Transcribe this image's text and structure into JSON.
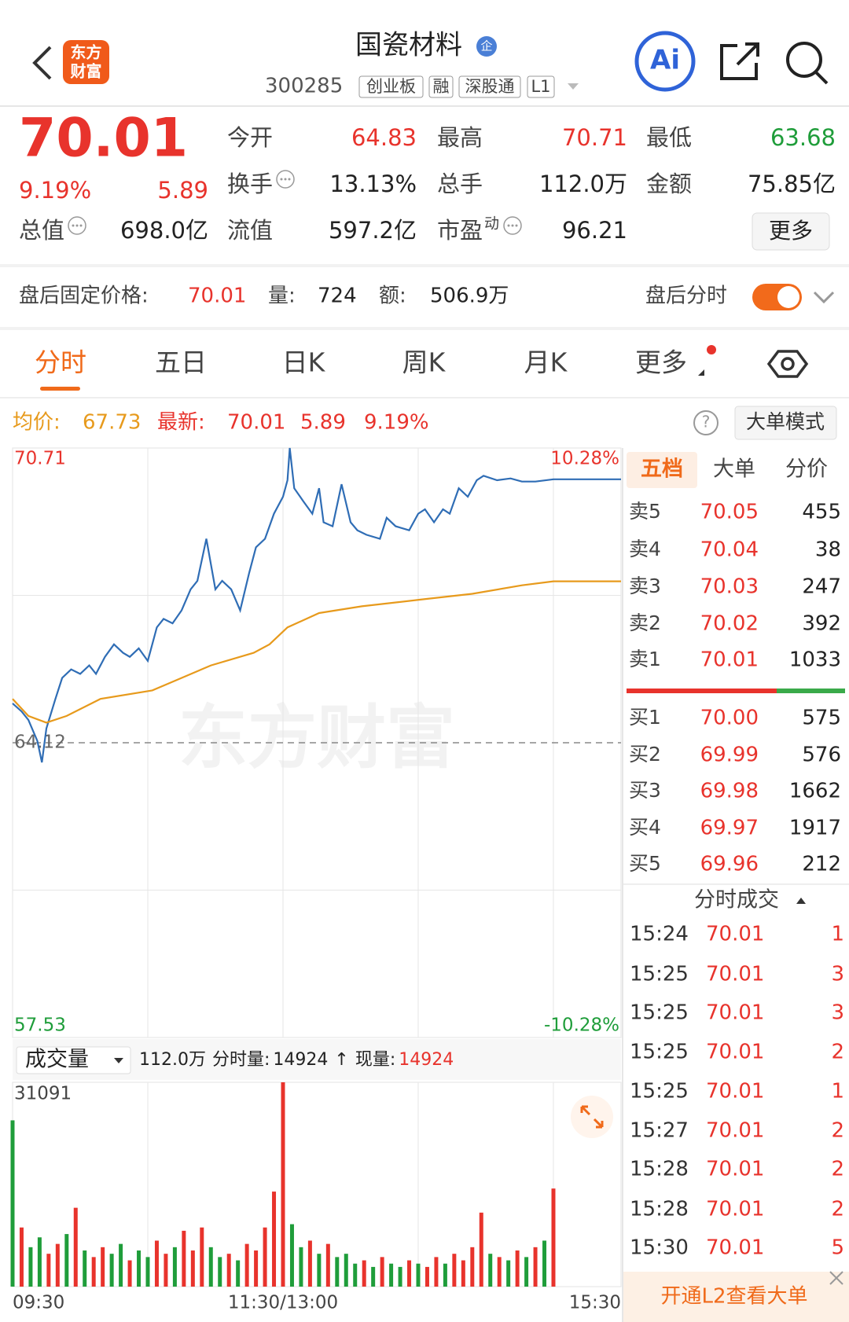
{
  "header": {
    "logo": [
      "东方",
      "财富"
    ],
    "title": "国瓷材料",
    "badge": "企",
    "code": "300285",
    "tags": [
      "创业板",
      "融",
      "深股通",
      "L1"
    ],
    "ai": "Ai"
  },
  "quote": {
    "price": "70.01",
    "change_pct": "9.19%",
    "change": "5.89",
    "rows": [
      [
        {
          "label": "今开",
          "value": "64.83",
          "color": "#e8332c"
        },
        {
          "label": "最高",
          "value": "70.71",
          "color": "#e8332c"
        },
        {
          "label": "最低",
          "value": "63.68",
          "color": "#1f9d3a"
        }
      ],
      [
        {
          "label": "换手",
          "value": "13.13%",
          "info": true
        },
        {
          "label": "总手",
          "value": "112.0万"
        },
        {
          "label": "金额",
          "value": "75.85亿"
        }
      ],
      [
        {
          "label": "总值",
          "value": "698.0亿",
          "info": true
        },
        {
          "label": "流值",
          "value": "597.2亿"
        },
        {
          "label": "市盈",
          "sup": "动",
          "value": "96.21",
          "info": true
        }
      ]
    ],
    "more": "更多"
  },
  "after_hours": {
    "label": "盘后固定价格:",
    "price": "70.01",
    "volume_label": "量:",
    "volume": "724",
    "amount_label": "额:",
    "amount": "506.9万",
    "toggle_label": "盘后分时"
  },
  "tabs": [
    "分时",
    "五日",
    "日K",
    "周K",
    "月K",
    "更多"
  ],
  "info": {
    "avg_label": "均价:",
    "avg": "67.73",
    "last_label": "最新:",
    "last": "70.01",
    "change": "5.89",
    "change_pct": "9.19%",
    "help": "?",
    "mode_button": "大单模式"
  },
  "chart_data": {
    "type": "line",
    "watermark": "东方财富",
    "xlim": [
      0,
      270
    ],
    "xticks": [
      {
        "value": 0,
        "label": "09:30"
      },
      {
        "value": 120,
        "label": "11:30/13:00"
      },
      {
        "value": 270,
        "label": "15:30"
      }
    ],
    "x_grid": [
      60,
      120,
      180,
      240
    ],
    "ylim": [
      57.53,
      70.71
    ],
    "yticks": [
      70.71,
      64.12,
      57.53
    ],
    "ytick_colors": [
      "#e8332c",
      "#666666",
      "#1f9d3a"
    ],
    "dashed_tick": 1,
    "y_grid_divisions": 4,
    "y2lim": [
      -10.28,
      10.28
    ],
    "y2ticks": [
      {
        "value": 10.28,
        "label": "10.28%"
      },
      {
        "value": -10.28,
        "label": "-10.28%"
      }
    ],
    "y2tick_colors": [
      "#e8332c",
      "#1f9d3a"
    ],
    "series": [
      {
        "color": "#2f6db5",
        "x": [
          0,
          4,
          7,
          11,
          13,
          15,
          19,
          22,
          26,
          30,
          34,
          37,
          41,
          45,
          49,
          52,
          56,
          60,
          64,
          67,
          71,
          75,
          79,
          82,
          86,
          90,
          93,
          97,
          101,
          105,
          108,
          112,
          116,
          120,
          122,
          123,
          125,
          129,
          133,
          136,
          138,
          142,
          146,
          150,
          153,
          157,
          163,
          166,
          170,
          176,
          180,
          183,
          187,
          191,
          194,
          198,
          202,
          206,
          209,
          215,
          221,
          226,
          232,
          240,
          270
        ],
        "values": [
          65.0,
          64.82,
          64.63,
          64.16,
          63.68,
          64.44,
          65.1,
          65.57,
          65.76,
          65.66,
          65.85,
          65.66,
          66.04,
          66.32,
          66.13,
          66.04,
          66.23,
          65.95,
          66.7,
          66.89,
          66.79,
          67.08,
          67.55,
          67.74,
          68.68,
          67.55,
          67.74,
          67.55,
          67.08,
          67.92,
          68.49,
          68.68,
          69.24,
          69.62,
          69.99,
          70.71,
          69.81,
          69.52,
          69.24,
          69.81,
          69.05,
          68.96,
          69.9,
          69.05,
          68.87,
          68.77,
          68.68,
          69.15,
          68.96,
          68.87,
          69.24,
          69.34,
          69.05,
          69.34,
          69.24,
          69.81,
          69.62,
          69.99,
          70.09,
          69.99,
          70.03,
          69.96,
          69.96,
          70.01,
          70.01
        ]
      },
      {
        "color": "#e79a1c",
        "x": [
          0,
          7,
          15,
          24,
          39,
          62,
          69,
          88,
          107,
          114,
          122,
          136,
          155,
          181,
          204,
          226,
          240,
          270
        ],
        "values": [
          65.1,
          64.72,
          64.57,
          64.72,
          65.1,
          65.29,
          65.44,
          65.85,
          66.13,
          66.32,
          66.7,
          67.02,
          67.17,
          67.32,
          67.45,
          67.64,
          67.73,
          67.73
        ]
      }
    ],
    "volume": {
      "type": "bar",
      "selector": "成交量",
      "summary": "112.0万",
      "interval_label": "分时量:",
      "interval": "14924",
      "arrow": "↑",
      "current_label": "现量:",
      "current": "14924",
      "ylim": [
        0,
        31091
      ],
      "yticks": [
        31091
      ],
      "x": [
        0,
        4,
        8,
        12,
        16,
        20,
        24,
        28,
        32,
        36,
        40,
        44,
        48,
        52,
        56,
        60,
        64,
        68,
        72,
        76,
        80,
        84,
        88,
        92,
        96,
        100,
        104,
        108,
        112,
        116,
        120,
        124,
        128,
        132,
        136,
        140,
        144,
        148,
        152,
        156,
        160,
        164,
        168,
        172,
        176,
        180,
        184,
        188,
        192,
        196,
        200,
        204,
        208,
        212,
        216,
        220,
        224,
        228,
        232,
        236,
        240
      ],
      "values": [
        25300,
        9000,
        6000,
        7500,
        5000,
        6500,
        8000,
        12000,
        5500,
        4500,
        6000,
        5000,
        6500,
        4000,
        5500,
        4500,
        7000,
        5000,
        6000,
        8500,
        5500,
        9000,
        6000,
        4500,
        5000,
        4000,
        6500,
        5500,
        9000,
        14460,
        31091,
        9500,
        6000,
        7000,
        5000,
        6500,
        4500,
        5000,
        3500,
        4000,
        3000,
        4500,
        3500,
        3000,
        4000,
        3500,
        3000,
        4500,
        3500,
        5000,
        4000,
        6000,
        11260,
        5000,
        4500,
        4000,
        5500,
        4500,
        6000,
        7000,
        14924
      ],
      "colors": [
        "#1f9d3a",
        "#e8332c",
        "#1f9d3a",
        "#1f9d3a",
        "#e8332c",
        "#e8332c",
        "#1f9d3a",
        "#e8332c",
        "#1f9d3a",
        "#e8332c",
        "#e8332c",
        "#1f9d3a",
        "#1f9d3a",
        "#e8332c",
        "#1f9d3a",
        "#1f9d3a",
        "#e8332c",
        "#e8332c",
        "#1f9d3a",
        "#e8332c",
        "#e8332c",
        "#e8332c",
        "#1f9d3a",
        "#1f9d3a",
        "#e8332c",
        "#1f9d3a",
        "#e8332c",
        "#e8332c",
        "#e8332c",
        "#e8332c",
        "#e8332c",
        "#1f9d3a",
        "#1f9d3a",
        "#e8332c",
        "#1f9d3a",
        "#e8332c",
        "#1f9d3a",
        "#1f9d3a",
        "#1f9d3a",
        "#e8332c",
        "#1f9d3a",
        "#e8332c",
        "#1f9d3a",
        "#1f9d3a",
        "#e8332c",
        "#1f9d3a",
        "#e8332c",
        "#e8332c",
        "#1f9d3a",
        "#e8332c",
        "#e8332c",
        "#e8332c",
        "#e8332c",
        "#1f9d3a",
        "#e8332c",
        "#1f9d3a",
        "#e8332c",
        "#1f9d3a",
        "#e8332c",
        "#1f9d3a",
        "#e8332c"
      ]
    }
  },
  "order_book": {
    "tabs": [
      "五档",
      "大单",
      "分价"
    ],
    "asks": [
      {
        "label": "卖5",
        "price": "70.05",
        "volume": "455"
      },
      {
        "label": "卖4",
        "price": "70.04",
        "volume": "38"
      },
      {
        "label": "卖3",
        "price": "70.03",
        "volume": "247"
      },
      {
        "label": "卖2",
        "price": "70.02",
        "volume": "392"
      },
      {
        "label": "卖1",
        "price": "70.01",
        "volume": "1033"
      }
    ],
    "bids": [
      {
        "label": "买1",
        "price": "70.00",
        "volume": "575"
      },
      {
        "label": "买2",
        "price": "69.99",
        "volume": "576"
      },
      {
        "label": "买3",
        "price": "69.98",
        "volume": "1662"
      },
      {
        "label": "买4",
        "price": "69.97",
        "volume": "1917"
      },
      {
        "label": "买5",
        "price": "69.96",
        "volume": "212"
      }
    ]
  },
  "trades": {
    "title": "分时成交",
    "rows": [
      {
        "time": "15:24",
        "price": "70.01",
        "volume": "1"
      },
      {
        "time": "15:25",
        "price": "70.01",
        "volume": "3"
      },
      {
        "time": "15:25",
        "price": "70.01",
        "volume": "3"
      },
      {
        "time": "15:25",
        "price": "70.01",
        "volume": "2"
      },
      {
        "time": "15:25",
        "price": "70.01",
        "volume": "1"
      },
      {
        "time": "15:27",
        "price": "70.01",
        "volume": "2"
      },
      {
        "time": "15:28",
        "price": "70.01",
        "volume": "2"
      },
      {
        "time": "15:28",
        "price": "70.01",
        "volume": "2"
      },
      {
        "time": "15:30",
        "price": "70.01",
        "volume": "5"
      }
    ]
  },
  "footer": {
    "text": "开通L2查看大单"
  }
}
